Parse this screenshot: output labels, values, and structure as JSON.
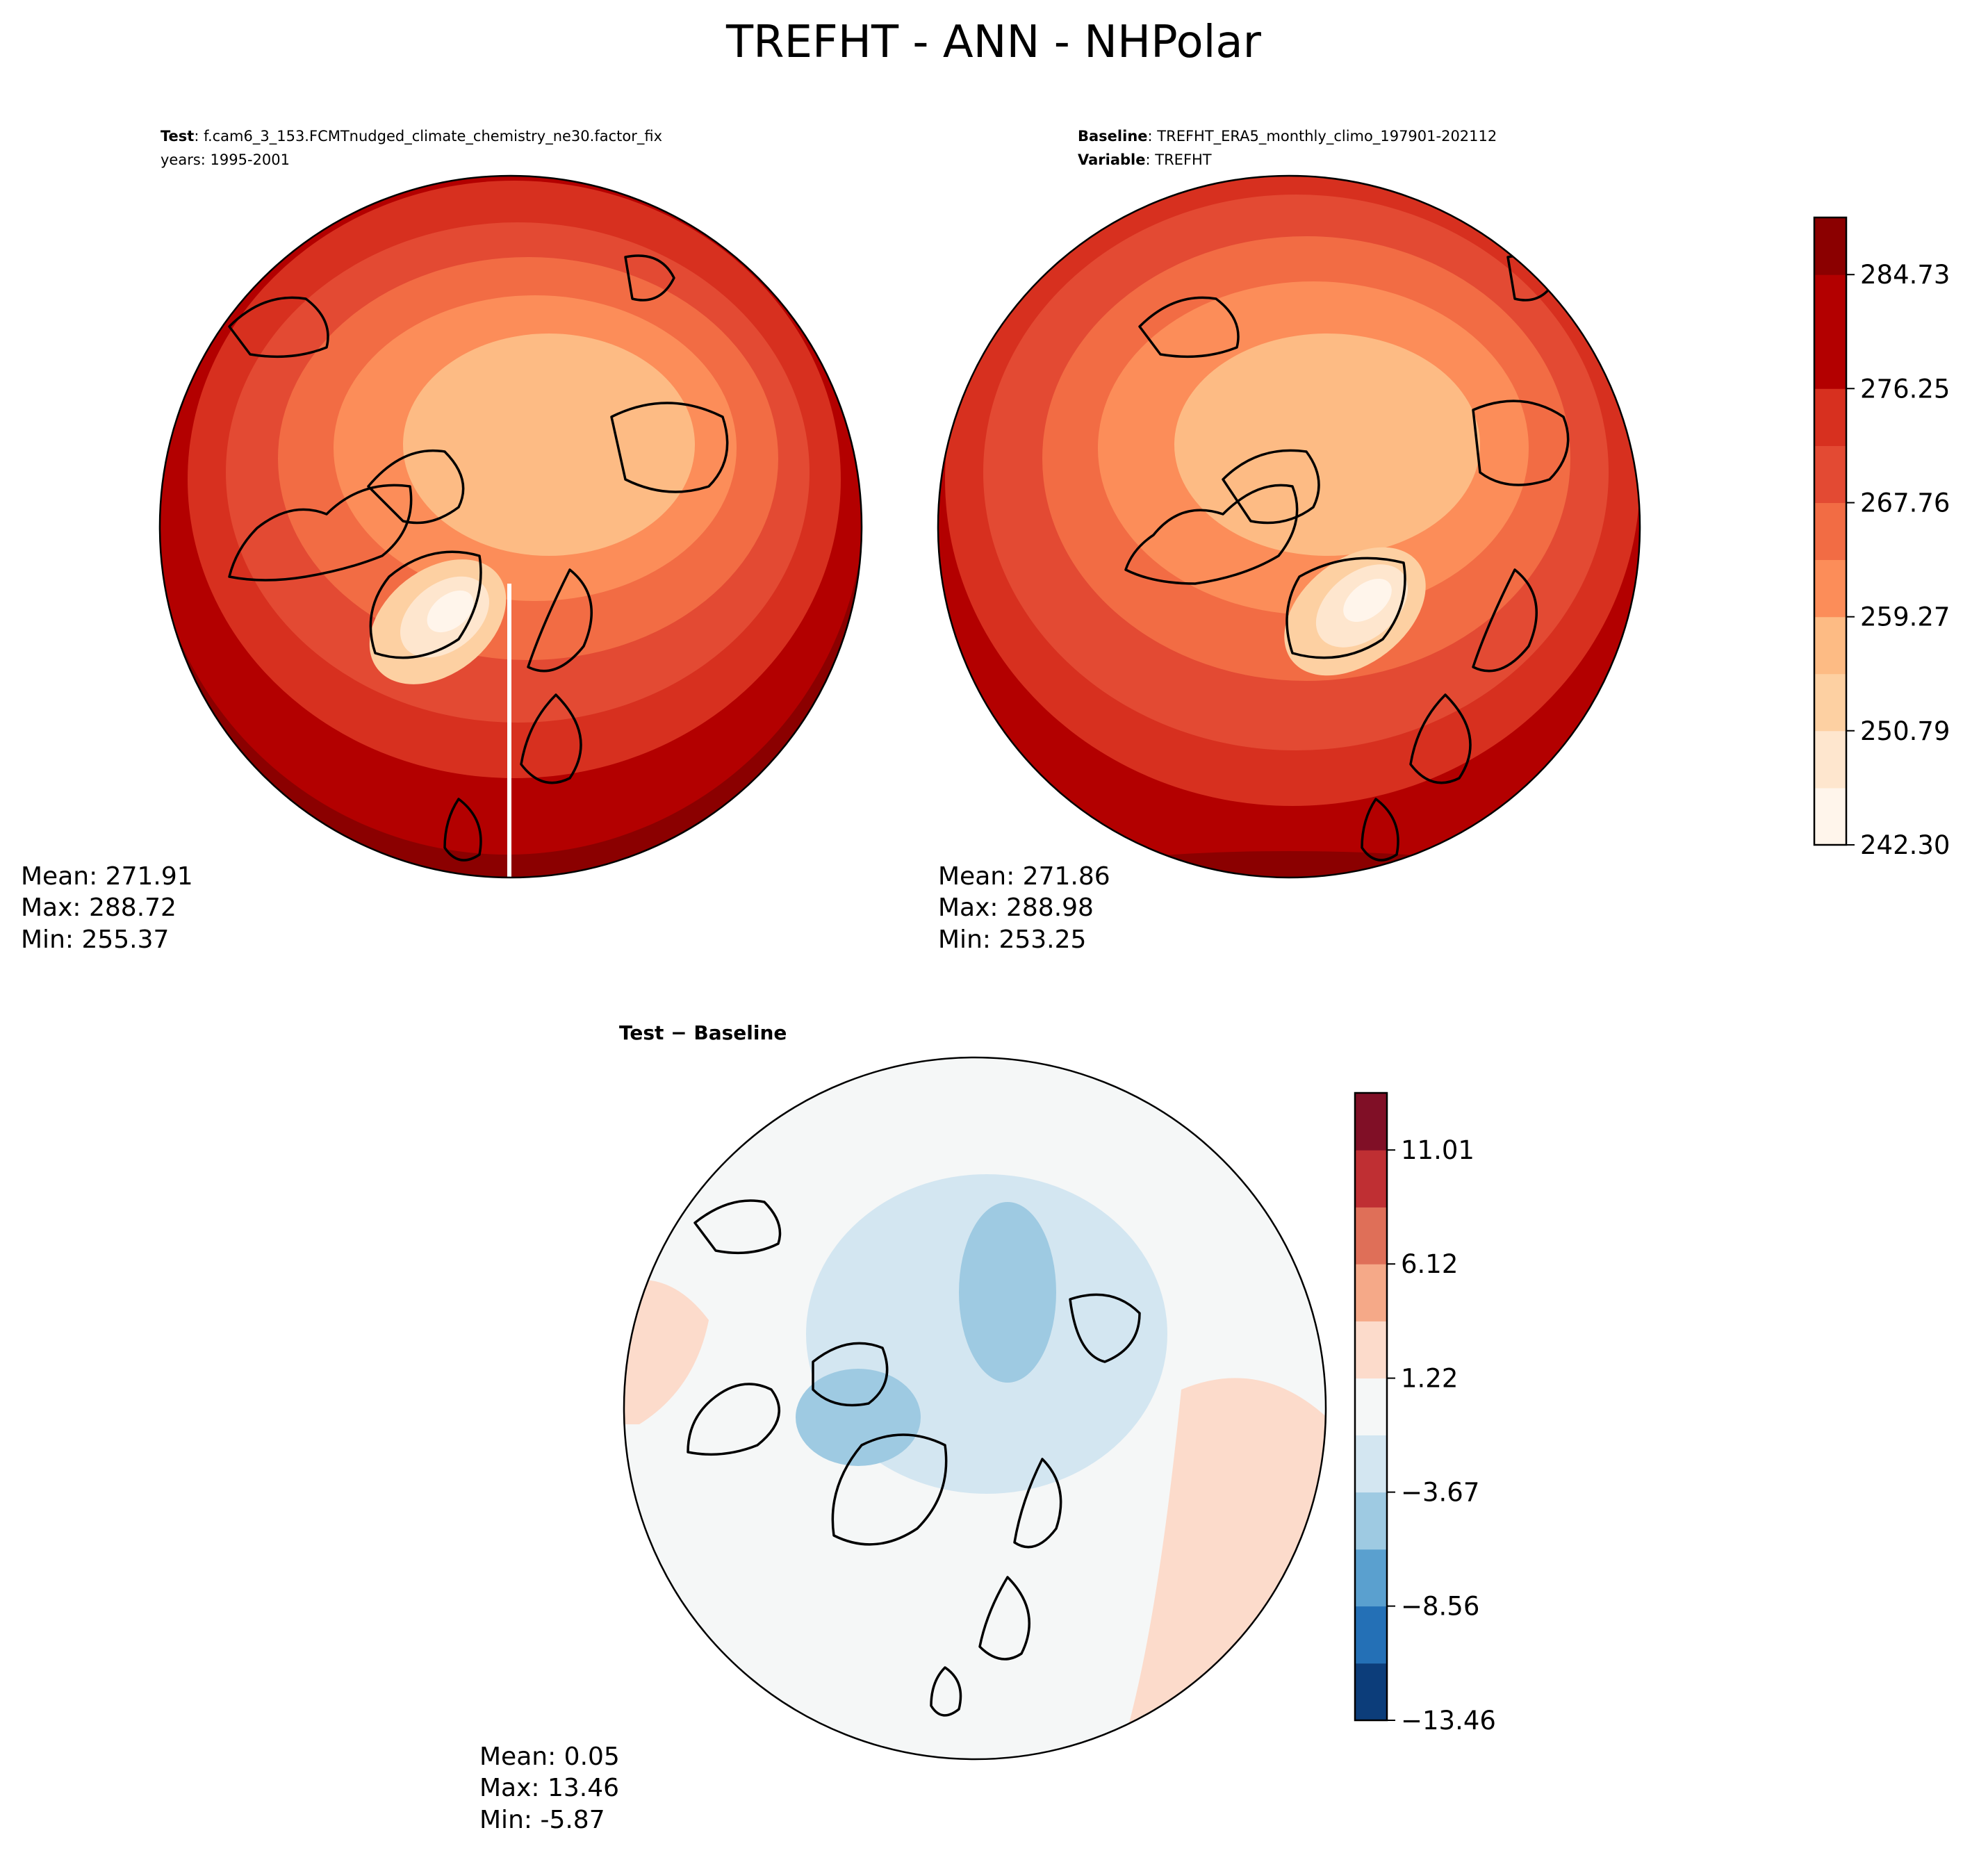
{
  "chart_data": {
    "type": "contour_map",
    "title": "TREFHT - ANN - NHPolar",
    "panels": [
      {
        "id": "test",
        "header_label": "Test",
        "header_value": "f.cam6_3_153.FCMTnudged_climate_chemistry_ne30.factor_fix",
        "header_line2": "years: 1995-2001",
        "stats": {
          "mean_label": "Mean: 271.91",
          "max_label": "Max: 288.72",
          "min_label": "Min: 255.37"
        },
        "colormap": "abs"
      },
      {
        "id": "baseline",
        "header_label": "Baseline",
        "header_value": "TREFHT_ERA5_monthly_climo_197901-202112",
        "header_label2": "Variable",
        "header_value2": "TREFHT",
        "stats": {
          "mean_label": "Mean: 271.86",
          "max_label": "Max: 288.98",
          "min_label": "Min: 253.25"
        },
        "colormap": "abs"
      },
      {
        "id": "diff",
        "header_label": "Test − Baseline",
        "stats": {
          "mean_label": "Mean:  0.05",
          "max_label": "Max: 13.46",
          "min_label": "Min: -5.87"
        },
        "colormap": "diff"
      }
    ],
    "colorbars": {
      "abs": {
        "levels": [
          242.3,
          246.54,
          250.79,
          255.03,
          259.27,
          263.52,
          267.76,
          272.0,
          276.25,
          280.49,
          284.73,
          288.98
        ],
        "tick_labels": [
          "242.30",
          "250.79",
          "259.27",
          "267.76",
          "276.25",
          "284.73"
        ],
        "tick_values": [
          242.3,
          250.79,
          259.27,
          267.76,
          276.25,
          284.73
        ],
        "colors": [
          "#fff5eb",
          "#fee6ce",
          "#fdd0a2",
          "#fdbb84",
          "#fc8d59",
          "#f26c44",
          "#e34a33",
          "#d7301f",
          "#b30000",
          "#b30000",
          "#8b0000"
        ]
      },
      "diff": {
        "levels": [
          -13.46,
          -11.01,
          -8.56,
          -6.12,
          -3.67,
          -1.22,
          1.22,
          3.67,
          6.12,
          8.56,
          11.01,
          13.46
        ],
        "tick_labels": [
          "−13.46",
          "−8.56",
          "−3.67",
          "1.22",
          "6.12",
          "11.01"
        ],
        "tick_values": [
          -13.46,
          -8.56,
          -3.67,
          1.22,
          6.12,
          11.01
        ],
        "colors": [
          "#0c3d7a",
          "#2470b6",
          "#5aa0cf",
          "#9ecae2",
          "#d3e6f1",
          "#f5f7f7",
          "#fcdbcb",
          "#f5a988",
          "#df6f58",
          "#bf2f33",
          "#800f26"
        ]
      }
    }
  }
}
